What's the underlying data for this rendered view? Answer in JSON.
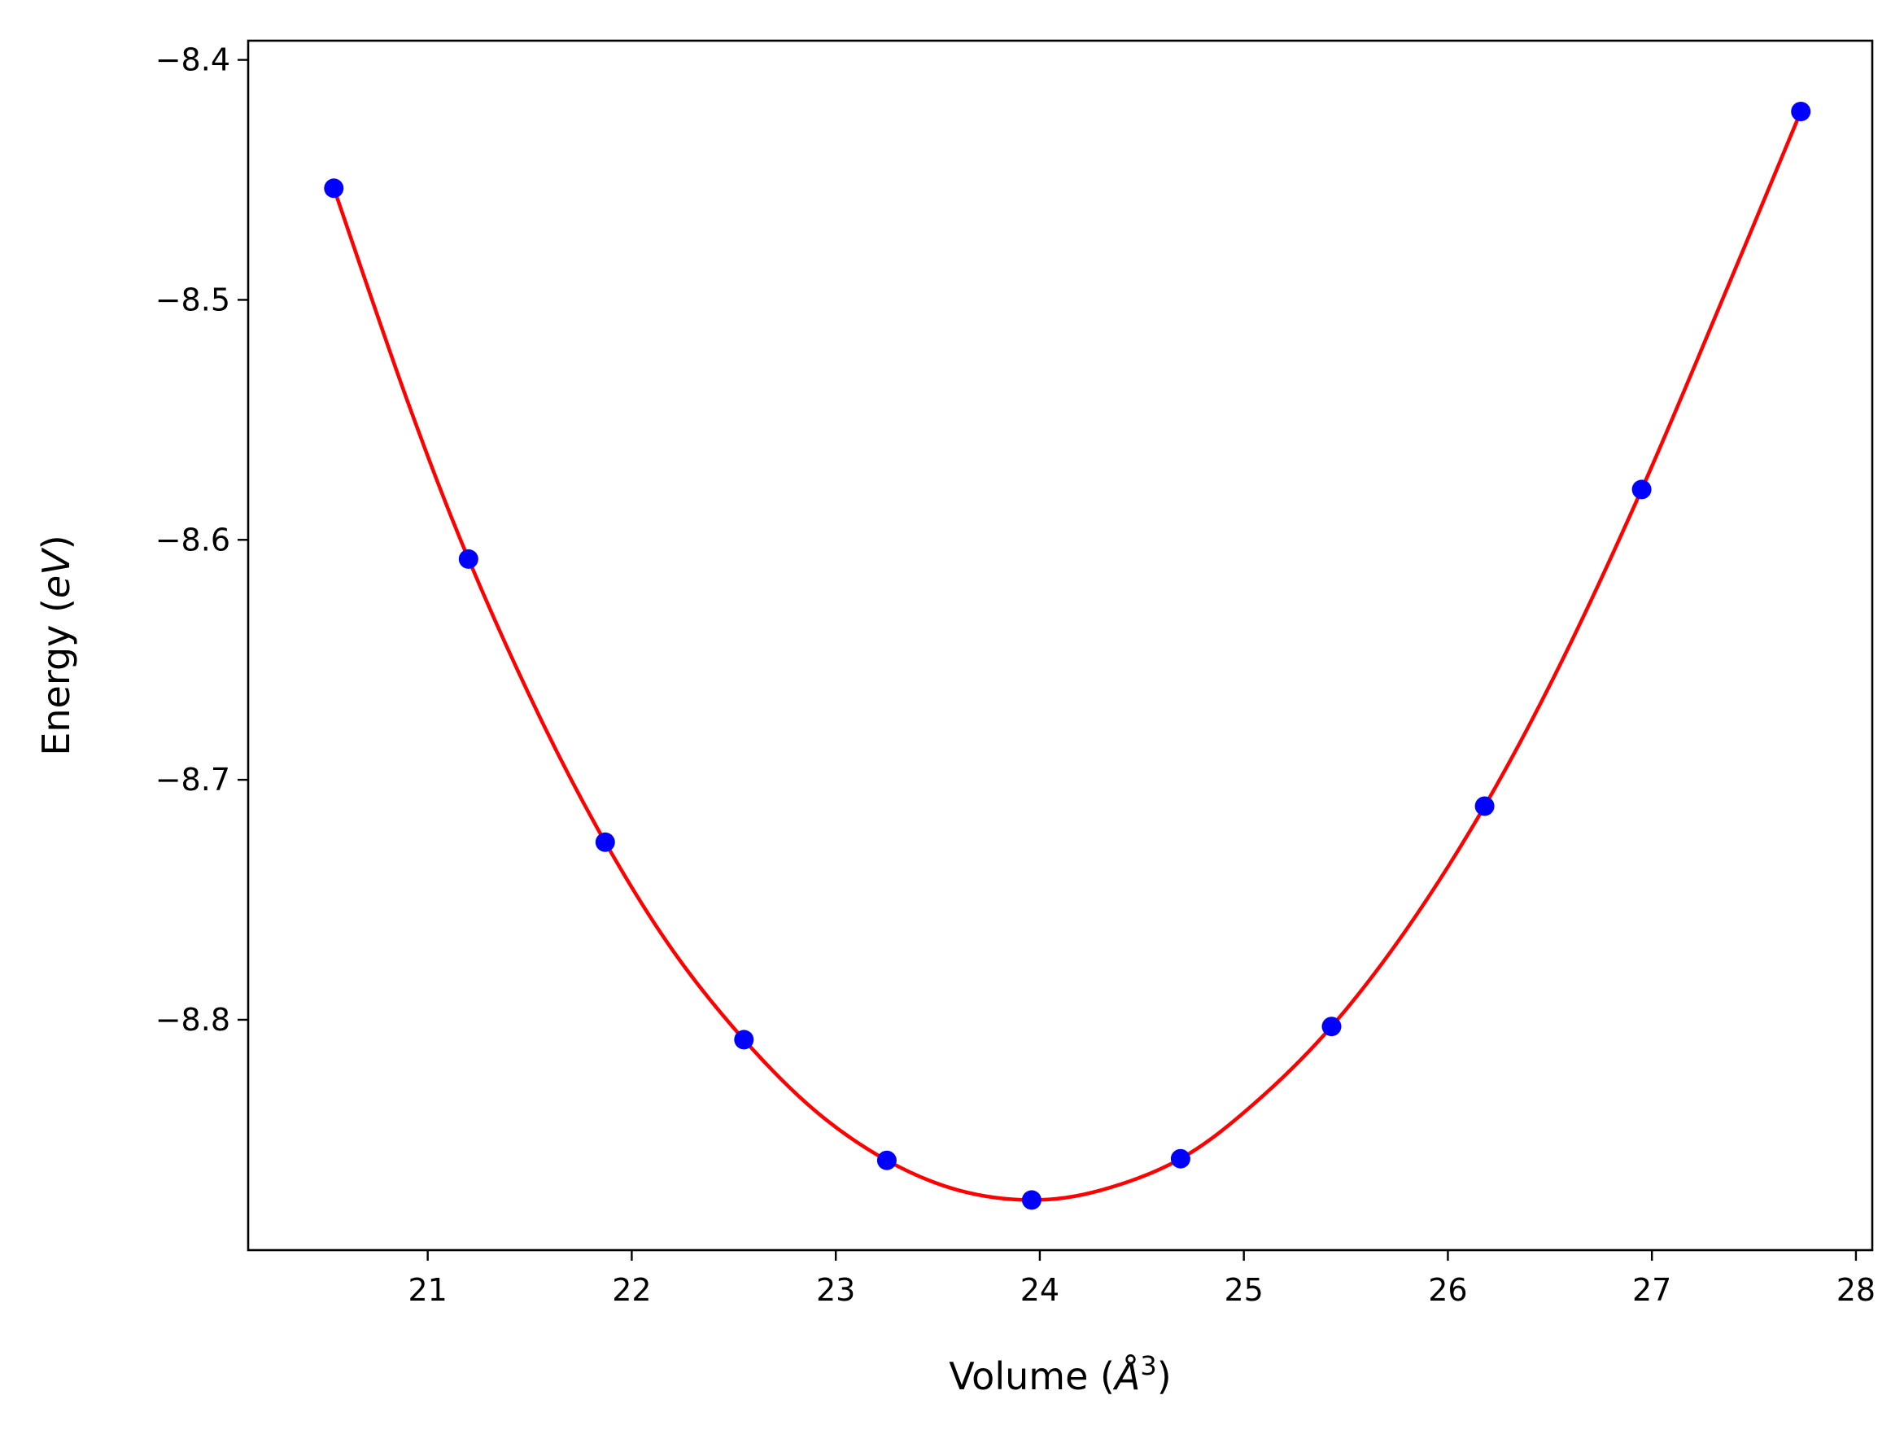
{
  "chart_data": {
    "type": "scatter",
    "title": "",
    "xlabel": "Volume ($\\AA^3$)",
    "ylabel": "Energy ($eV$)",
    "xlim": [
      20.12,
      28.08
    ],
    "ylim": [
      -8.896,
      -8.392
    ],
    "x_ticks": [
      {
        "value": 21,
        "label": "21"
      },
      {
        "value": 22,
        "label": "22"
      },
      {
        "value": 23,
        "label": "23"
      },
      {
        "value": 24,
        "label": "24"
      },
      {
        "value": 25,
        "label": "25"
      },
      {
        "value": 26,
        "label": "26"
      },
      {
        "value": 27,
        "label": "27"
      },
      {
        "value": 28,
        "label": "28"
      }
    ],
    "y_ticks": [
      {
        "value": -8.4,
        "label": "−8.4"
      },
      {
        "value": -8.5,
        "label": "−8.5"
      },
      {
        "value": -8.6,
        "label": "−8.6"
      },
      {
        "value": -8.7,
        "label": "−8.7"
      },
      {
        "value": -8.8,
        "label": "−8.8"
      }
    ],
    "grid": false,
    "series": [
      {
        "kind": "markers",
        "color": "#0000ff",
        "x": [
          20.54,
          21.2,
          21.87,
          22.55,
          23.25,
          23.96,
          24.69,
          25.43,
          26.18,
          26.95,
          27.73
        ],
        "y": [
          -8.4535,
          -8.608,
          -8.726,
          -8.8083,
          -8.8586,
          -8.8751,
          -8.8579,
          -8.8028,
          -8.711,
          -8.579,
          -8.4215
        ]
      },
      {
        "kind": "fit-curve",
        "color": "#ff0000",
        "x": [
          20.54,
          20.9,
          21.2,
          21.55,
          21.87,
          22.2,
          22.55,
          22.9,
          23.25,
          23.6,
          23.96,
          24.3,
          24.69,
          25.05,
          25.43,
          25.8,
          26.18,
          26.55,
          26.95,
          27.35,
          27.73
        ],
        "y": [
          -8.4535,
          -8.542,
          -8.608,
          -8.674,
          -8.726,
          -8.771,
          -8.8083,
          -8.838,
          -8.8586,
          -8.871,
          -8.8751,
          -8.871,
          -8.8579,
          -8.835,
          -8.8028,
          -8.762,
          -8.711,
          -8.652,
          -8.579,
          -8.499,
          -8.4215
        ]
      }
    ]
  }
}
